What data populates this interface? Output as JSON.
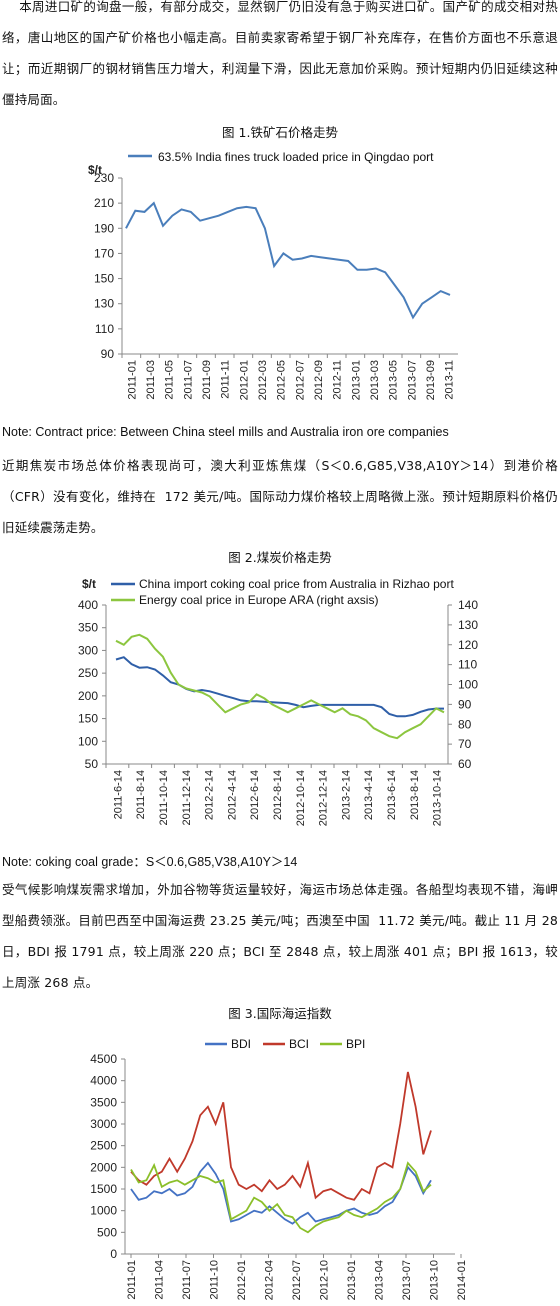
{
  "paragraphs": [
    "    本周进口矿的询盘一般，有部分成交，显然钢厂仍旧没有急于购买进口矿。国产矿的成交相对热络，唐山地区的国产矿价格也小幅走高。目前卖家寄希望于钢厂补充库存，在售价方面也不乐意退让；而近期钢厂的钢材销售压力增大，利润量下滑，因此无意加价采购。预计短期内仍旧延续这种僵持局面。",
    "近期焦炭市场总体价格表现尚可，澳大利亚炼焦煤（S＜0.6,G85,V38,A10Y＞14）到港价格（CFR）没有变化，维持在  172 美元/吨。国际动力煤价格较上周略微上涨。预计短期原料价格仍旧延续震荡走势。",
    "受气候影响煤炭需求增加，外加谷物等货运量较好，海运市场总体走强。各船型均表现不错，海岬型船费领涨。目前巴西至中国海运费 23.25 美元/吨；西澳至中国  11.72 美元/吨。截止 11 月 28 日，BDI 报 1791 点，较上周涨 220 点；BCI 至 2848 点，较上周涨 401 点；BPI 报 1613，较上周涨 268 点。"
  ],
  "captions": {
    "fig1": "图 1.铁矿石价格走势",
    "fig2": "图 2.煤炭价格走势",
    "fig3": "图 3.国际海运指数"
  },
  "notes": {
    "note1": "Note:  Contract price: Between China steel mills and Australia iron ore companies",
    "note2": "Note:  coking coal grade：S＜0.6,G85,V38,A10Y＞14"
  },
  "chart_data": [
    {
      "type": "line",
      "ylabel": "$/t",
      "ylim": [
        90,
        230
      ],
      "yticks": [
        90,
        110,
        130,
        150,
        170,
        190,
        210,
        230
      ],
      "x_tick_labels": [
        "2011-01",
        "2011-03",
        "2011-05",
        "2011-07",
        "2011-09",
        "2011-11",
        "2012-01",
        "2012-03",
        "2012-05",
        "2012-07",
        "2012-09",
        "2012-11",
        "2013-01",
        "2013-03",
        "2013-05",
        "2013-07",
        "2013-09",
        "2013-11"
      ],
      "color": "#4a7ebb",
      "series": [
        {
          "name": "63.5% India fines truck loaded price in Qingdao port",
          "x": [
            0,
            1,
            2,
            3,
            4,
            5,
            6,
            7,
            8,
            9,
            10,
            11,
            12,
            13,
            14,
            15,
            16,
            17,
            18,
            19,
            20,
            21,
            22,
            23,
            24,
            25,
            26,
            27,
            28,
            29,
            30,
            31,
            32,
            33,
            34,
            35
          ],
          "values": [
            190,
            204,
            203,
            210,
            192,
            200,
            205,
            203,
            196,
            198,
            200,
            203,
            206,
            207,
            206,
            190,
            160,
            170,
            165,
            166,
            168,
            167,
            166,
            165,
            164,
            157,
            157,
            158,
            155,
            145,
            135,
            119,
            130,
            135,
            140,
            137
          ]
        }
      ]
    },
    {
      "type": "line",
      "ylabel": "$/t",
      "ylim": [
        50,
        400
      ],
      "y2lim": [
        60,
        140
      ],
      "yticks": [
        50,
        100,
        150,
        200,
        250,
        300,
        350,
        400
      ],
      "y2ticks": [
        60,
        70,
        80,
        90,
        100,
        110,
        120,
        130,
        140
      ],
      "x_tick_labels": [
        "2011-6-14",
        "2011-8-14",
        "2011-10-14",
        "2011-12-14",
        "2012-2-14",
        "2012-4-14",
        "2012-6-14",
        "2012-8-14",
        "2012-10-14",
        "2012-12-14",
        "2013-2-14",
        "2013-4-14",
        "2013-6-14",
        "2013-8-14",
        "2013-10-14"
      ],
      "series": [
        {
          "name": "China  import  coking  coal price from Australia in Rizhao port",
          "axis": "left",
          "color": "#2f5fa8",
          "values": [
            280,
            285,
            270,
            262,
            263,
            258,
            245,
            230,
            225,
            215,
            210,
            213,
            210,
            205,
            200,
            195,
            190,
            188,
            188,
            187,
            186,
            185,
            184,
            180,
            175,
            178,
            180,
            180,
            180,
            180,
            180,
            180,
            180,
            180,
            175,
            160,
            155,
            155,
            158,
            165,
            170,
            172,
            172
          ]
        },
        {
          "name": "Energy coal price in Europe ARA (right axsis)",
          "axis": "right",
          "color": "#8cc63f",
          "values": [
            122,
            120,
            124,
            125,
            123,
            118,
            114,
            106,
            100,
            98,
            97,
            96,
            94,
            90,
            86,
            88,
            90,
            91,
            95,
            93,
            90,
            88,
            86,
            88,
            90,
            92,
            90,
            88,
            86,
            88,
            85,
            84,
            82,
            78,
            76,
            74,
            73,
            76,
            78,
            80,
            84,
            88,
            86
          ]
        }
      ]
    },
    {
      "type": "line",
      "ylim": [
        0,
        4500
      ],
      "yticks": [
        0,
        500,
        1000,
        1500,
        2000,
        2500,
        3000,
        3500,
        4000,
        4500
      ],
      "x_tick_labels": [
        "2011-01",
        "2011-04",
        "2011-07",
        "2011-10",
        "2012-01",
        "2012-04",
        "2012-07",
        "2012-10",
        "2013-01",
        "2013-04",
        "2013-07",
        "2013-10",
        "2014-01"
      ],
      "series": [
        {
          "name": "BDI",
          "color": "#4472c4",
          "values": [
            1500,
            1250,
            1300,
            1450,
            1400,
            1500,
            1350,
            1400,
            1550,
            1900,
            2100,
            1850,
            1500,
            750,
            800,
            900,
            1000,
            950,
            1100,
            950,
            800,
            700,
            850,
            950,
            750,
            800,
            850,
            900,
            1000,
            1050,
            950,
            900,
            950,
            1100,
            1200,
            1500,
            2000,
            1800,
            1400,
            1700
          ]
        },
        {
          "name": "BCI",
          "color": "#c0392b",
          "values": [
            1900,
            1700,
            1600,
            1800,
            1900,
            2200,
            1900,
            2200,
            2600,
            3200,
            3400,
            3000,
            3500,
            2000,
            1600,
            1500,
            1600,
            1450,
            1700,
            1500,
            1600,
            1800,
            1550,
            2100,
            1300,
            1450,
            1500,
            1400,
            1300,
            1250,
            1500,
            1400,
            2000,
            2100,
            2000,
            3000,
            4200,
            3400,
            2300,
            2850
          ]
        },
        {
          "name": "BPI",
          "color": "#8bbf2a",
          "values": [
            1950,
            1650,
            1700,
            2050,
            1550,
            1650,
            1700,
            1600,
            1700,
            1800,
            1750,
            1650,
            1700,
            800,
            900,
            1000,
            1300,
            1200,
            1000,
            1150,
            900,
            850,
            600,
            500,
            650,
            750,
            800,
            850,
            1000,
            900,
            850,
            950,
            1050,
            1200,
            1300,
            1500,
            2100,
            1900,
            1450,
            1600
          ]
        }
      ]
    }
  ]
}
